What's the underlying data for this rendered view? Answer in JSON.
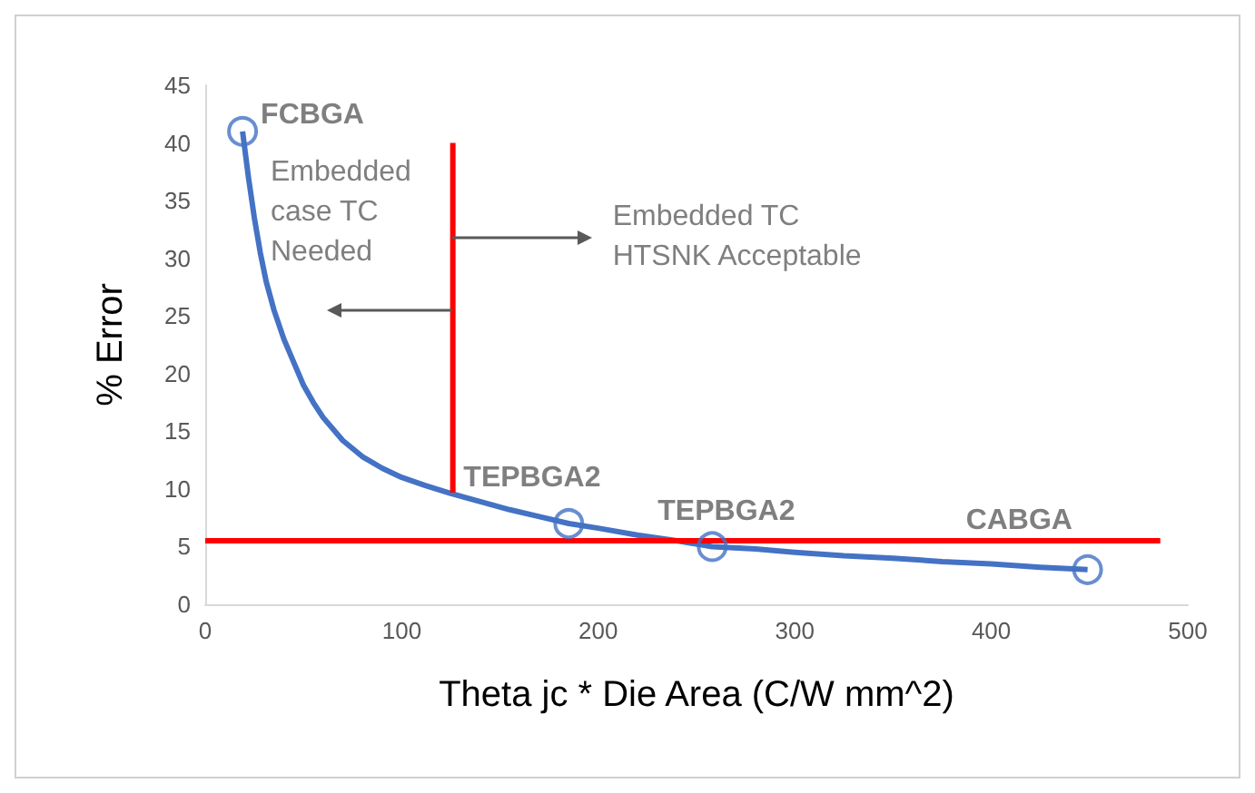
{
  "chart_data": {
    "type": "line",
    "xlabel": "Theta jc * Die Area (C/W mm^2)",
    "ylabel": "% Error",
    "xlim": [
      0,
      500
    ],
    "xticks": [
      0,
      100,
      200,
      300,
      400,
      500
    ],
    "ylim": [
      0,
      45
    ],
    "yticks": [
      0,
      5,
      10,
      15,
      20,
      25,
      30,
      35,
      40,
      45
    ],
    "marker": "none",
    "series": [
      {
        "color": "#4472c4",
        "x": [
          19,
          22,
          25,
          28,
          31,
          35,
          40,
          45,
          50,
          55,
          60,
          70,
          80,
          90,
          100,
          112,
          125,
          140,
          155,
          170,
          185,
          200,
          220,
          240,
          258,
          280,
          300,
          325,
          350,
          375,
          400,
          425,
          449
        ],
        "values": [
          41,
          37,
          33.5,
          30.5,
          28,
          25.5,
          23,
          21,
          19,
          17.5,
          16.2,
          14.2,
          12.8,
          11.8,
          11,
          10.3,
          9.6,
          8.9,
          8.2,
          7.6,
          7,
          6.6,
          6,
          5.5,
          5,
          4.8,
          4.5,
          4.2,
          4,
          3.7,
          3.5,
          3.2,
          3
        ]
      },
      {
        "type": "scatter",
        "color": "#4472c4",
        "marker": "circle",
        "x": [
          19,
          185,
          258,
          449
        ],
        "values": [
          41,
          7,
          5,
          3
        ]
      },
      {
        "color": "#ff0000",
        "x": [
          126,
          126
        ],
        "values": [
          9.7,
          40
        ]
      },
      {
        "color": "#ff0000",
        "x": [
          0,
          486
        ],
        "values": [
          5.5,
          5.5
        ]
      }
    ],
    "annotations": [
      {
        "text": "FCBGA",
        "x": 19,
        "y": 41
      },
      {
        "text": "TEPBGA2",
        "x": 185,
        "y": 7
      },
      {
        "text": "TEPBGA2",
        "x": 258,
        "y": 5
      },
      {
        "text": "CABGA",
        "x": 449,
        "y": 3
      },
      "Embedded\ncase TC\nNeeded",
      {
        "text": "Embedded TC\nHTSNK Acceptable",
        "x": 126,
        "y": 31.7
      }
    ]
  }
}
